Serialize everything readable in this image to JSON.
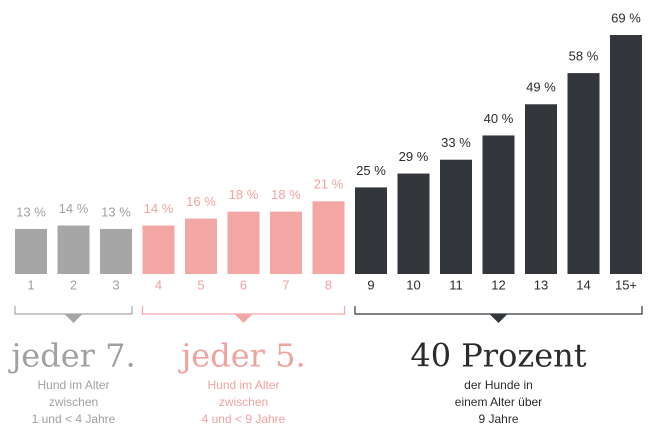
{
  "chart_data": {
    "type": "bar",
    "groups": [
      {
        "color": "#a6a6a6",
        "text_color": "#a0a0a0",
        "categories": [
          "1",
          "2",
          "3"
        ],
        "values": [
          13,
          14,
          13
        ],
        "value_labels": [
          "13 %",
          "14 %",
          "13 %"
        ],
        "headline": "jeder 7.",
        "text": [
          "Hund im Alter",
          "zwischen",
          "1 und < 4 Jahre"
        ]
      },
      {
        "color": "#f2a7a5",
        "text_color": "#f0a29f",
        "categories": [
          "4",
          "5",
          "6",
          "7",
          "8"
        ],
        "values": [
          14,
          16,
          18,
          18,
          21
        ],
        "value_labels": [
          "14 %",
          "16 %",
          "18 %",
          "18 %",
          "21 %"
        ],
        "headline": "jeder 5.",
        "text": [
          "Hund im Alter",
          "zwischen",
          "4 und < 9 Jahre"
        ]
      },
      {
        "color": "#33363b",
        "text_color": "#2b2b2b",
        "categories": [
          "9",
          "10",
          "11",
          "12",
          "13",
          "14",
          "15+"
        ],
        "values": [
          25,
          29,
          33,
          40,
          49,
          58,
          69
        ],
        "value_labels": [
          "25 %",
          "29 %",
          "33 %",
          "40 %",
          "49 %",
          "58 %",
          "69 %"
        ],
        "headline": "40 Prozent",
        "text": [
          "der Hunde in",
          "einem Alter über",
          "9 Jahre"
        ]
      }
    ]
  }
}
